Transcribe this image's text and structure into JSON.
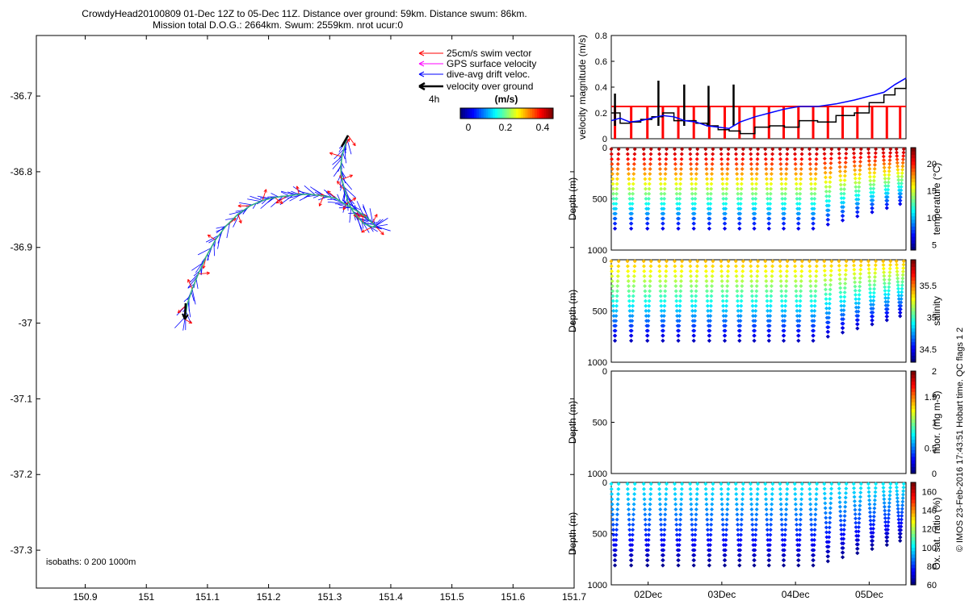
{
  "title": {
    "line1": "CrowdyHead20100809 01-Dec 12Z to 05-Dec 11Z. Distance over ground: 59km. Distance swum: 86km.",
    "line2": "Mission total D.O.G.: 2664km. Swum: 2559km. nrot ucur:0"
  },
  "colors": {
    "swim_vector": "#ff0000",
    "gps_velocity": "#ff00ff",
    "drift_velocity": "#0000ff",
    "velocity_over_ground": "#000000"
  },
  "chart_data": [
    {
      "id": "map",
      "type": "line",
      "xlim": [
        150.82,
        151.7
      ],
      "ylim": [
        -37.35,
        -36.62
      ],
      "xticks": [
        "150.9",
        "151",
        "151.1",
        "151.2",
        "151.3",
        "151.4",
        "151.5",
        "151.6",
        "151.7"
      ],
      "xtick_values": [
        150.9,
        151.0,
        151.1,
        151.2,
        151.3,
        151.4,
        151.5,
        151.6,
        151.7
      ],
      "yticks": [
        "-36.7",
        "-36.8",
        "-36.9",
        "-37",
        "-37.1",
        "-37.2",
        "-37.3"
      ],
      "ytick_values": [
        -36.7,
        -36.8,
        -36.9,
        -37.0,
        -37.1,
        -37.2,
        -37.3
      ],
      "track": {
        "lon": [
          151.063,
          151.067,
          151.075,
          151.085,
          151.098,
          151.113,
          151.13,
          151.15,
          151.17,
          151.19,
          151.21,
          151.23,
          151.25,
          151.27,
          151.29,
          151.31,
          151.325,
          151.345,
          151.36,
          151.37,
          151.375,
          151.37,
          151.355,
          151.34,
          151.33,
          151.325,
          151.32,
          151.318,
          151.32,
          151.325,
          151.33
        ],
        "lat": [
          -36.995,
          -36.975,
          -36.955,
          -36.935,
          -36.912,
          -36.89,
          -36.872,
          -36.856,
          -36.845,
          -36.838,
          -36.834,
          -36.832,
          -36.83,
          -36.83,
          -36.832,
          -36.835,
          -36.843,
          -36.852,
          -36.86,
          -36.868,
          -36.872,
          -36.873,
          -36.868,
          -36.855,
          -36.84,
          -36.825,
          -36.81,
          -36.795,
          -36.78,
          -36.765,
          -36.752
        ]
      },
      "legend": {
        "swim": "25cm/s swim vector",
        "gps": "GPS surface velocity",
        "drift": "dive-avg drift veloc.",
        "vog": "velocity over ground",
        "interval": "4h"
      },
      "colorbar": {
        "label": "(m/s)",
        "ticks": [
          "0",
          "0.2",
          "0.4"
        ],
        "tick_values": [
          0,
          0.2,
          0.4
        ],
        "range": [
          0,
          0.5
        ]
      },
      "annotation": "isobaths: 0   200   1000m"
    },
    {
      "id": "velocity",
      "type": "line",
      "ylabel": "velocity magnitude (m/s)",
      "ylim": [
        0,
        0.8
      ],
      "yticks": [
        "0",
        "0.2",
        "0.4",
        "0.6",
        "0.8"
      ],
      "ytick_values": [
        0,
        0.2,
        0.4,
        0.6,
        0.8
      ],
      "xlim": [
        1.5,
        5.5
      ],
      "swim_speed": 0.25,
      "dive_times": [
        1.55,
        1.77,
        1.99,
        2.2,
        2.41,
        2.62,
        2.83,
        3.04,
        3.24,
        3.44,
        3.64,
        3.84,
        4.04,
        4.24,
        4.44,
        4.64,
        4.84,
        5.04,
        5.24,
        5.42
      ],
      "series": [
        {
          "name": "dive-avg drift veloc.",
          "x": [
            1.5,
            1.62,
            1.75,
            1.9,
            2.05,
            2.2,
            2.35,
            2.5,
            2.65,
            2.8,
            2.95,
            3.1,
            3.25,
            3.45,
            3.65,
            3.85,
            4.05,
            4.3,
            4.55,
            4.8,
            5.0,
            5.2,
            5.35,
            5.5
          ],
          "y": [
            0.14,
            0.16,
            0.13,
            0.14,
            0.16,
            0.18,
            0.17,
            0.14,
            0.13,
            0.1,
            0.09,
            0.08,
            0.13,
            0.17,
            0.2,
            0.23,
            0.25,
            0.25,
            0.27,
            0.3,
            0.33,
            0.36,
            0.42,
            0.47
          ]
        },
        {
          "name": "velocity over ground",
          "x": [
            1.5,
            1.62,
            1.75,
            1.9,
            2.05,
            2.2,
            2.35,
            2.5,
            2.65,
            2.8,
            2.95,
            3.1,
            3.25,
            3.45,
            3.65,
            3.85,
            4.05,
            4.3,
            4.55,
            4.8,
            5.0,
            5.2,
            5.35,
            5.5
          ],
          "y": [
            0.2,
            0.12,
            0.13,
            0.15,
            0.17,
            0.2,
            0.14,
            0.14,
            0.12,
            0.1,
            0.07,
            0.06,
            0.04,
            0.09,
            0.1,
            0.09,
            0.14,
            0.13,
            0.18,
            0.2,
            0.28,
            0.34,
            0.39,
            0.46
          ]
        }
      ],
      "spikes": {
        "x": [
          1.55,
          2.14,
          2.49,
          2.82,
          3.16
        ],
        "y": [
          0.35,
          0.45,
          0.42,
          0.41,
          0.42
        ]
      }
    },
    {
      "id": "temperature",
      "type": "scatter",
      "ylabel": "Depth (m)",
      "ylim": [
        0,
        1000
      ],
      "yticks": [
        "0",
        "500",
        "1000"
      ],
      "ytick_values": [
        0,
        500,
        1000
      ],
      "cbar_label": "temperature (°C)",
      "cbar_range": [
        4,
        23
      ],
      "cbar_ticks": [
        "5",
        "10",
        "15",
        "20"
      ],
      "cbar_tick_values": [
        5,
        10,
        15,
        20
      ],
      "surface_value": 22,
      "bottom_value": 6,
      "max_depth": 790
    },
    {
      "id": "salinity",
      "type": "scatter",
      "ylabel": "Depth (m)",
      "ylim": [
        0,
        1000
      ],
      "yticks": [
        "0",
        "500",
        "1000"
      ],
      "ytick_values": [
        0,
        500,
        1000
      ],
      "cbar_label": "salinity",
      "cbar_range": [
        34.3,
        35.9
      ],
      "cbar_ticks": [
        "34.5",
        "35",
        "35.5"
      ],
      "cbar_tick_values": [
        34.5,
        35,
        35.5
      ],
      "surface_value": 35.4,
      "bottom_value": 34.4,
      "max_depth": 790
    },
    {
      "id": "fluorescence",
      "type": "scatter",
      "ylabel": "Depth (m)",
      "ylim": [
        0,
        1000
      ],
      "yticks": [
        "0",
        "500",
        "1000"
      ],
      "ytick_values": [
        0,
        500,
        1000
      ],
      "cbar_label": "fluor. (mg m-3)",
      "cbar_range": [
        0,
        2
      ],
      "cbar_ticks": [
        "0",
        "0.5",
        "1",
        "1.5",
        "2"
      ],
      "cbar_tick_values": [
        0,
        0.5,
        1,
        1.5,
        2
      ],
      "empty": true
    },
    {
      "id": "oxygen",
      "type": "scatter",
      "ylabel": "Depth (m)",
      "ylim": [
        0,
        1000
      ],
      "yticks": [
        "0",
        "500",
        "1000"
      ],
      "ytick_values": [
        0,
        500,
        1000
      ],
      "xticks": [
        "02Dec",
        "03Dec",
        "04Dec",
        "05Dec"
      ],
      "xtick_values": [
        2.0,
        3.0,
        4.0,
        5.0
      ],
      "cbar_label": "Ox. sat. ratio (%)",
      "cbar_range": [
        60,
        170
      ],
      "cbar_ticks": [
        "60",
        "80",
        "100",
        "120",
        "140",
        "160"
      ],
      "cbar_tick_values": [
        60,
        80,
        100,
        120,
        140,
        160
      ],
      "surface_value": 100,
      "bottom_value": 62,
      "max_depth": 810
    }
  ],
  "profile_time": {
    "xlim": [
      1.5,
      5.5
    ],
    "dive_times": [
      1.55,
      1.77,
      1.99,
      2.2,
      2.41,
      2.62,
      2.83,
      3.04,
      3.24,
      3.44,
      3.64,
      3.84,
      4.04,
      4.24,
      4.44,
      4.64,
      4.84,
      5.04,
      5.24,
      5.42
    ]
  },
  "side_note": "© IMOS 23-Feb-2016 17:43:51 Hobart time. QC flags 1  2"
}
